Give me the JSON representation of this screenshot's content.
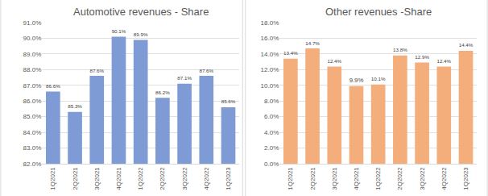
{
  "chart_data": [
    {
      "type": "bar",
      "title": "Automotive revenues - Share",
      "categories": [
        "1Q2021",
        "2Q2021",
        "3Q2021",
        "4Q2021",
        "1Q2022",
        "2Q2022",
        "3Q2022",
        "4Q2022",
        "1Q2023"
      ],
      "values": [
        86.6,
        85.3,
        87.6,
        90.1,
        89.9,
        86.2,
        87.1,
        87.6,
        85.6
      ],
      "value_labels": [
        "86.6%",
        "85.3%",
        "87.6%",
        "90.1%",
        "89.9%",
        "86.2%",
        "87.1%",
        "87.6%",
        "85.6%"
      ],
      "color": "#7f9bd6",
      "ylim": [
        82,
        91
      ],
      "yticks": [
        {
          "value": 82,
          "label": "82.0%"
        },
        {
          "value": 83,
          "label": "83.0%"
        },
        {
          "value": 84,
          "label": "84.0%"
        },
        {
          "value": 85,
          "label": "85.0%"
        },
        {
          "value": 86,
          "label": "86.0%"
        },
        {
          "value": 87,
          "label": "87.0%"
        },
        {
          "value": 88,
          "label": "88.0%"
        },
        {
          "value": 89,
          "label": "89.0%"
        },
        {
          "value": 90,
          "label": "90.0%"
        },
        {
          "value": 91,
          "label": "91.0%"
        }
      ],
      "grid": true,
      "data_labels": true
    },
    {
      "type": "bar",
      "title": "Other revenues -Share",
      "categories": [
        "1Q2021",
        "2Q2021",
        "3Q2021",
        "4Q2021",
        "1Q2022",
        "2Q2022",
        "3Q2022",
        "4Q2022",
        "1Q2023"
      ],
      "values": [
        13.4,
        14.7,
        12.4,
        9.9,
        10.1,
        13.8,
        12.9,
        12.4,
        14.4
      ],
      "value_labels": [
        "13.4%",
        "14.7%",
        "12.4%",
        "9.9%",
        "10.1%",
        "13.8%",
        "12.9%",
        "12.4%",
        "14.4%"
      ],
      "color": "#f4ae7c",
      "ylim": [
        0,
        18
      ],
      "yticks": [
        {
          "value": 0,
          "label": "0.0%"
        },
        {
          "value": 2,
          "label": "2.0%"
        },
        {
          "value": 4,
          "label": "4.0%"
        },
        {
          "value": 6,
          "label": "6.0%"
        },
        {
          "value": 8,
          "label": "8.0%"
        },
        {
          "value": 10,
          "label": "10.0%"
        },
        {
          "value": 12,
          "label": "12.0%"
        },
        {
          "value": 14,
          "label": "14.0%"
        },
        {
          "value": 16,
          "label": "16.0%"
        },
        {
          "value": 18,
          "label": "18.0%"
        }
      ],
      "grid": true,
      "data_labels": true
    }
  ]
}
